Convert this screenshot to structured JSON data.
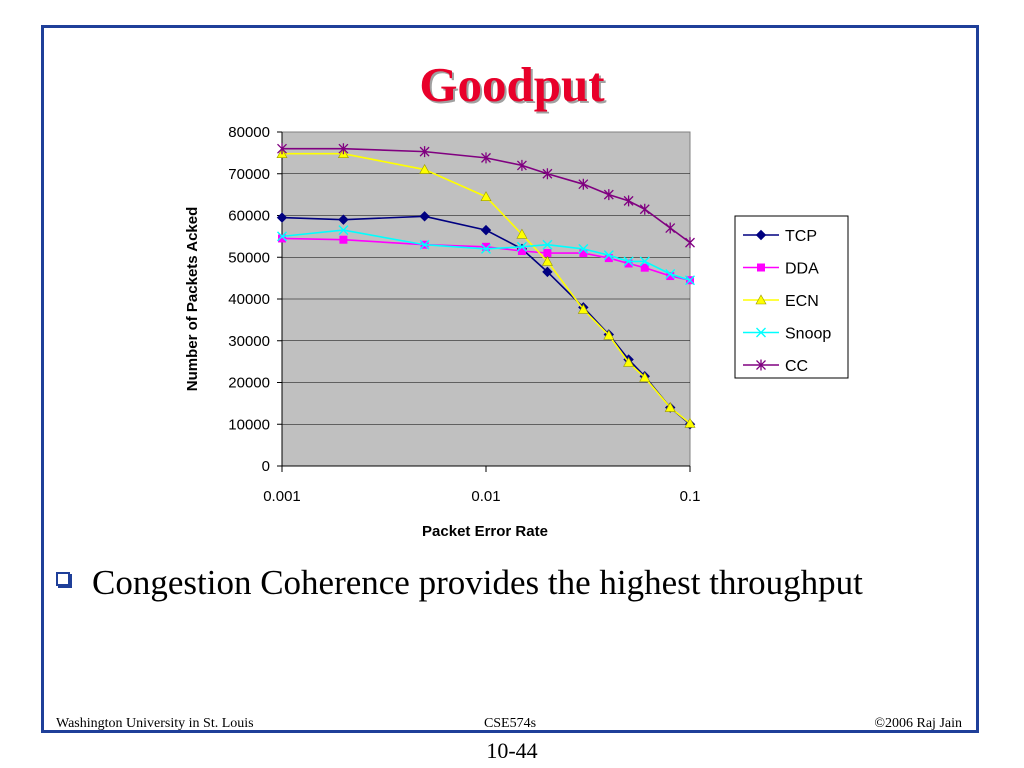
{
  "slide": {
    "title": "Goodput",
    "bullet": "Congestion Coherence provides the highest throughput",
    "footer_left": "Washington University in St. Louis",
    "footer_center": "CSE574s",
    "footer_right": "©2006 Raj Jain",
    "page_number": "10-44"
  },
  "colors": {
    "title": "#e8002a",
    "frame": "#1f3f99",
    "plot_bg": "#c0c0c0",
    "TCP": "#000080",
    "DDA": "#ff00ff",
    "ECN": "#ffff00",
    "Snoop": "#00ffff",
    "CC": "#800080"
  },
  "chart_data": {
    "type": "line",
    "xscale": "log",
    "xlabel": "Packet Error Rate",
    "ylabel": "Number of Packets Acked",
    "xlim": [
      0.001,
      0.1
    ],
    "ylim": [
      0,
      80000
    ],
    "xticks": [
      "0.001",
      "0.01",
      "0.1"
    ],
    "yticks": [
      "0",
      "10000",
      "20000",
      "30000",
      "40000",
      "50000",
      "60000",
      "70000",
      "80000"
    ],
    "grid": true,
    "legend": "right",
    "x": [
      0.001,
      0.002,
      0.005,
      0.01,
      0.015,
      0.02,
      0.03,
      0.04,
      0.05,
      0.06,
      0.08,
      0.1
    ],
    "series": [
      {
        "name": "TCP",
        "marker": "diamond",
        "values": [
          59500,
          59000,
          59800,
          56500,
          52000,
          46500,
          38000,
          31500,
          25500,
          21500,
          14000,
          10000
        ]
      },
      {
        "name": "DDA",
        "marker": "square",
        "values": [
          54500,
          54200,
          53000,
          52500,
          51500,
          51000,
          51000,
          49800,
          48500,
          47500,
          45500,
          44500
        ]
      },
      {
        "name": "ECN",
        "marker": "triangle",
        "values": [
          74800,
          74800,
          71000,
          64500,
          55500,
          49000,
          37500,
          31300,
          24800,
          21200,
          14000,
          10200
        ]
      },
      {
        "name": "Snoop",
        "marker": "x",
        "values": [
          55000,
          56500,
          53000,
          52000,
          52500,
          53000,
          52000,
          50500,
          49000,
          49000,
          46000,
          44500
        ]
      },
      {
        "name": "CC",
        "marker": "star",
        "values": [
          76000,
          76000,
          75300,
          73800,
          72000,
          70000,
          67500,
          65000,
          63500,
          61500,
          57000,
          53500
        ]
      }
    ]
  }
}
